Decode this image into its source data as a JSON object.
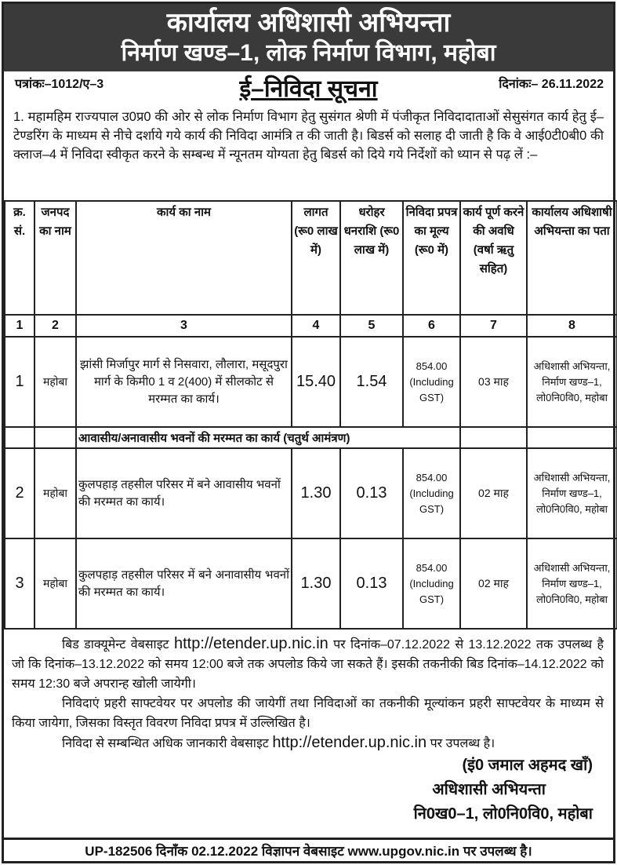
{
  "header": {
    "line1": "कार्यालय अधिशासी अभियन्ता",
    "line2": "निर्माण खण्ड–1, लोक निर्माण विभाग, महोबा"
  },
  "ref": {
    "number": "पत्रांकः–1012/ए–3",
    "date": "दिनांकः– 26.11.2022",
    "title": "ई–निविदा सूचना"
  },
  "intro": "1.  महामहिम राज्यपाल उ0प्र0 की ओर से लोक निर्माण विभाग हेतु सुसंगत श्रेणी में पंजीकृत निविदादाताओं सेसुसंगत कार्य हेतु ई–टेण्डरिंग के माध्यम से नीचे दर्शाये गये कार्य की निविदा आमंत्रि त की जाती है। बिडर्स को सलाह दी जाती है कि वे आई0टी0बी0 की क्लाज–4 में निविदा स्वीकृत करने के सम्बन्ध में न्यूनतम योग्यता हेतु बिडर्स को दिये गये निर्देशों को ध्यान से पढ़ लें :–",
  "table": {
    "headers": [
      "क्र. सं.",
      "जनपद का नाम",
      "कार्य का नाम",
      "लागत (रू0 लाख में)",
      "धरोहर धनराशि (रू0 लाख में)",
      "निविदा प्रपत्र का मूल्य (रू0 में)",
      "कार्य पूर्ण करने की अवधि (वर्षा ऋतु सहित)",
      "कार्यालय अधिशाषी अभियन्ता का पता"
    ],
    "numbers": [
      "1",
      "2",
      "3",
      "4",
      "5",
      "6",
      "7",
      "8"
    ],
    "rows": [
      {
        "sno": "1",
        "district": "महोबा",
        "work": "झांसी मिर्जापुर मार्ग से निसवारा, लौलारा, मसूदपुरा मार्ग के किमी0 1 व 2(400) में सीलकोट से मरम्मत का कार्य।",
        "cost": "15.40",
        "deposit": "1.54",
        "fee": "854.00 (Including GST)",
        "duration": "03 माह",
        "address": "अधिशासी अभियन्ता, निर्माण खण्ड–1, लो0नि0वि0, महोबा"
      },
      {
        "sno": "2",
        "district": "महोबा",
        "work": "कुलपहाड़ तहसील परिसर में बने आवासीय भवनों की मरम्मत का कार्य।",
        "cost": "1.30",
        "deposit": "0.13",
        "fee": "854.00 (Including GST)",
        "duration": "02 माह",
        "address": "अधिशासी अभियन्ता, निर्माण खण्ड–1, लो0नि0वि0, महोबा"
      },
      {
        "sno": "3",
        "district": "महोबा",
        "work": "कुलपहाड़ तहसील परिसर में बने अनावासीय भवनों की मरम्मत का कार्य।",
        "cost": "1.30",
        "deposit": "0.13",
        "fee": "854.00 (Including GST)",
        "duration": "02 माह",
        "address": "अधिशासी अभियन्ता, निर्माण खण्ड–1, लो0नि0वि0, महोबा"
      }
    ],
    "section": "आवासीय/अनावासीय भवनों की मरम्मत का कार्य (चतुर्थ आमंत्रण)"
  },
  "footer": {
    "p1a": "बिड डाक्यूमेन्ट वेबसाइट ",
    "url": "http://etender.up.nic.in",
    "p1b": " पर दिनांक–07.12.2022 से 13.12.2022 तक उपलब्ध है जो कि दिनांक–13.12.2022 को समय 12:00 बजे तक अपलोड किये जा सकते हैं। इसकी तकनीकी बिड दिनांक–14.12.2022 को समय 12:30 बजे अपरान्ह खोली जायेगी।",
    "p2": "निविदाएं प्रहरी साफ्टवेयर पर अपलोड की जायेगीं तथा निविदाओं का तकनीकी मूल्यांकन प्रहरी साफ्टवेयर के माध्यम से किया जायेगा, जिसका विस्तृत विवरण निविदा प्रपत्र में उल्लिखित है।",
    "p3a": "निविदा से सम्बन्धित अधिक जानकारी वेबसाइट ",
    "p3b": " पर उपलब्ध है।",
    "sig_name": "(इं0 जमाल अहमद खाँ)",
    "sig_title": "अधिशासी अभियन्ता",
    "sig_office": "नि0ख0–1, लो0नि0वि0, महोबा"
  },
  "bottom": "UP-182506 दिनाँक 02.12.2022 विज्ञापन वेबसाइट www.upgov.nic.in पर उपलब्ध है।"
}
